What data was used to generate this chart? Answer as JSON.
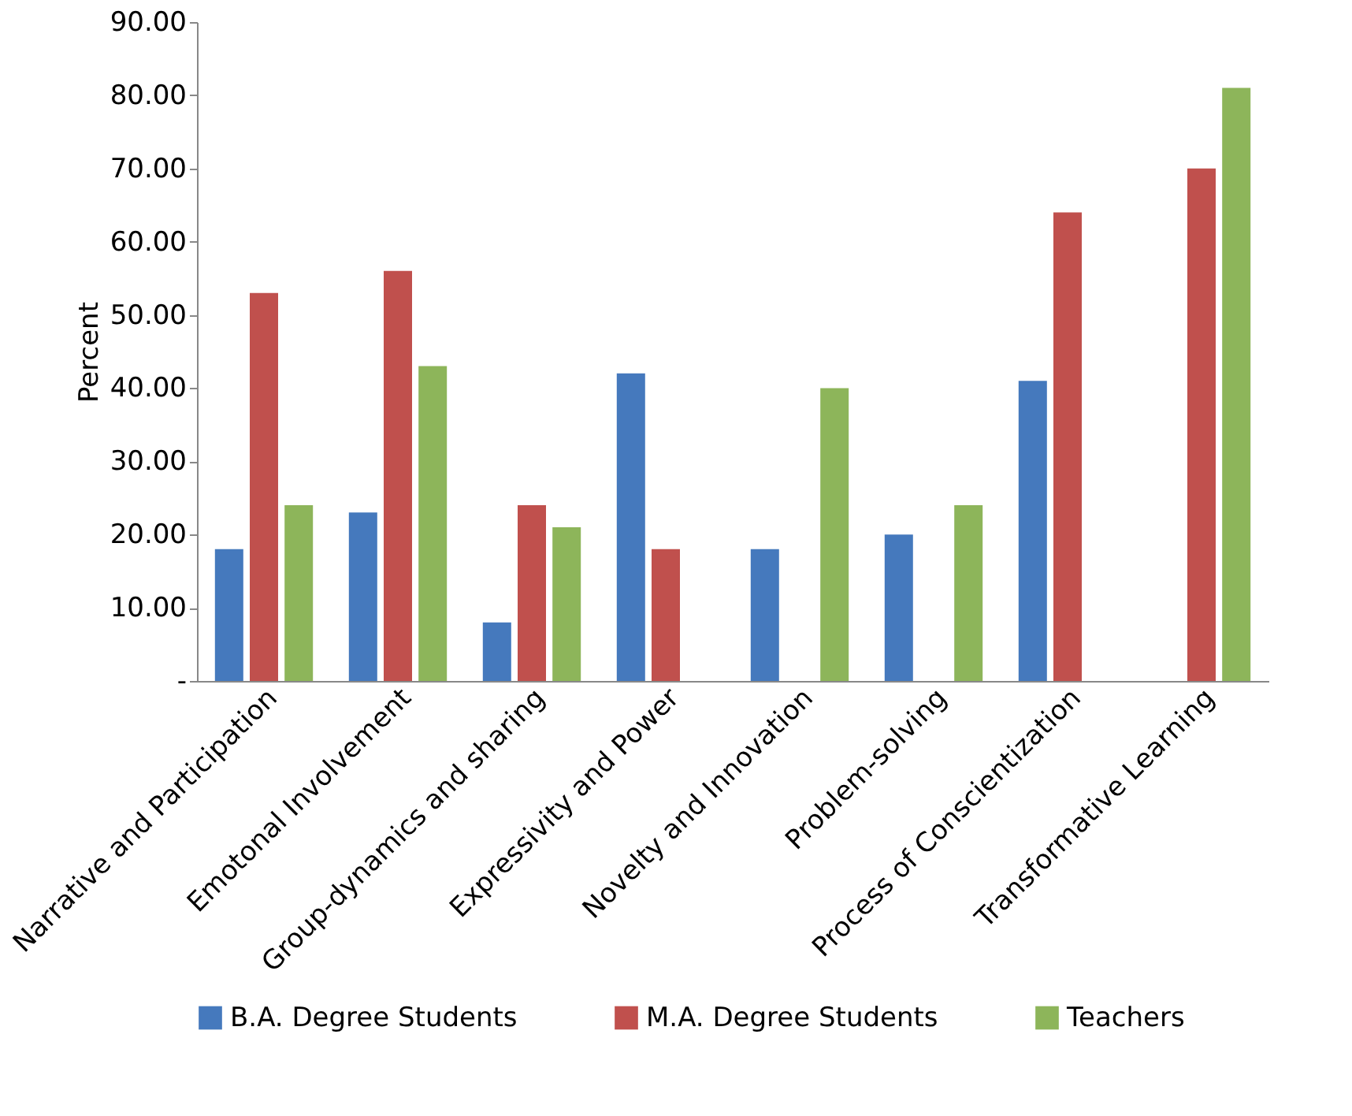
{
  "chart_data": {
    "type": "bar",
    "ylabel": "Percent",
    "categories": [
      "Narrative and Participation",
      "Emotonal Involvement",
      "Group-dynamics and sharing",
      "Expressivity and Power",
      "Novelty and Innovation",
      "Problem-solving",
      "Process of Conscientization",
      "Transformative Learning"
    ],
    "series": [
      {
        "name": "B.A. Degree Students",
        "color": "#4579bd",
        "values": [
          18,
          23,
          8,
          42,
          18,
          20,
          41,
          null
        ]
      },
      {
        "name": "M.A. Degree Students",
        "color": "#c0504d",
        "values": [
          53,
          56,
          24,
          18,
          null,
          null,
          64,
          70
        ]
      },
      {
        "name": "Teachers",
        "color": "#8db55a",
        "values": [
          24,
          43,
          21,
          null,
          40,
          24,
          null,
          81
        ]
      }
    ],
    "ylim": [
      0,
      90
    ],
    "yticks": [
      {
        "value": 0,
        "label": "-"
      },
      {
        "value": 10,
        "label": "10.00"
      },
      {
        "value": 20,
        "label": "20.00"
      },
      {
        "value": 30,
        "label": "30.00"
      },
      {
        "value": 40,
        "label": "40.00"
      },
      {
        "value": 50,
        "label": "50.00"
      },
      {
        "value": 60,
        "label": "60.00"
      },
      {
        "value": 70,
        "label": "70.00"
      },
      {
        "value": 80,
        "label": "80.00"
      },
      {
        "value": 90,
        "label": "90.00"
      }
    ],
    "grid": false,
    "legend": "bottom"
  }
}
